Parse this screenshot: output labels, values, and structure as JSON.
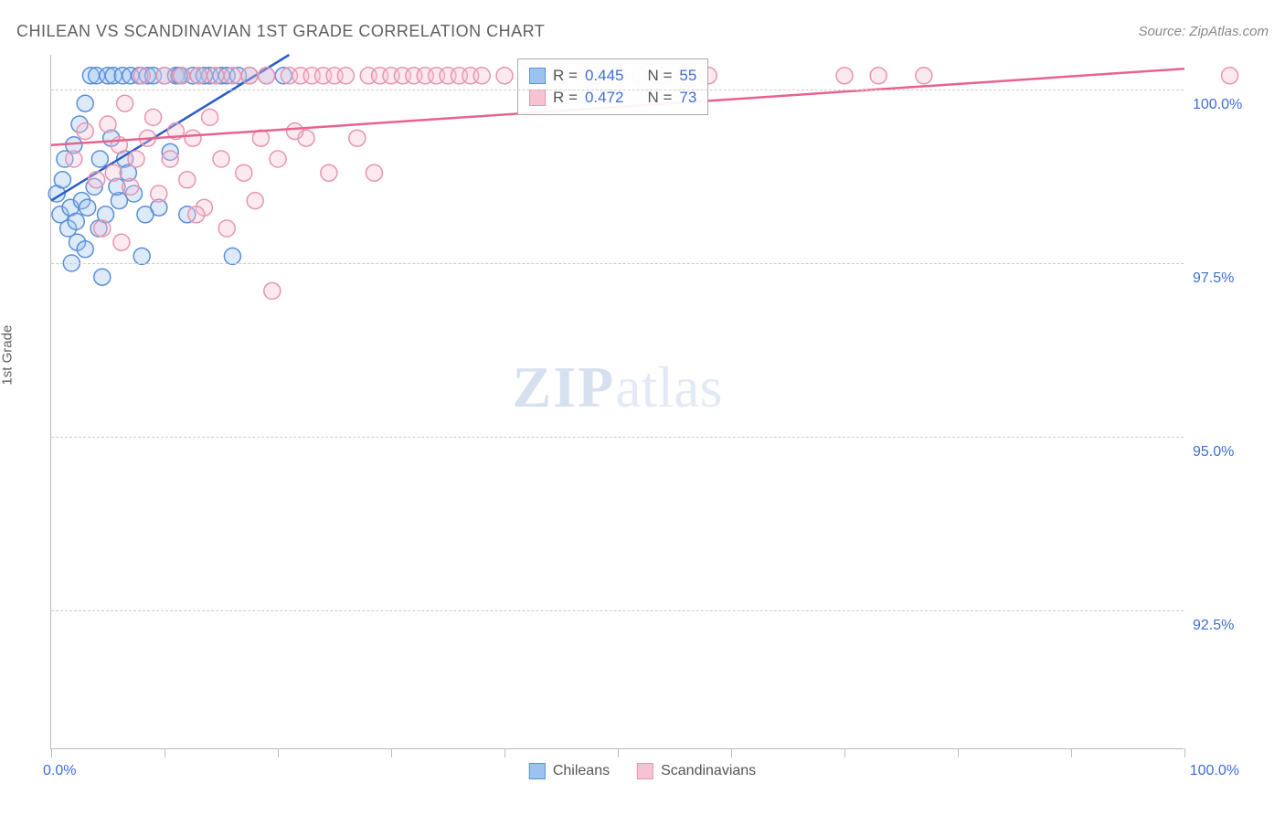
{
  "title": "CHILEAN VS SCANDINAVIAN 1ST GRADE CORRELATION CHART",
  "source": "Source: ZipAtlas.com",
  "y_axis_label": "1st Grade",
  "watermark": {
    "zip": "ZIP",
    "atlas": "atlas"
  },
  "chart": {
    "type": "scatter",
    "xlim": [
      0,
      100
    ],
    "ylim": [
      90.5,
      100.5
    ],
    "y_gridlines": [
      92.5,
      95.0,
      97.5,
      100.0
    ],
    "y_tick_labels": [
      "92.5%",
      "95.0%",
      "97.5%",
      "100.0%"
    ],
    "x_ticks": [
      0,
      10,
      20,
      30,
      40,
      50,
      60,
      70,
      80,
      90,
      100
    ],
    "x_min_label": "0.0%",
    "x_max_label": "100.0%",
    "background": "#ffffff",
    "grid_color": "#cccccc",
    "axis_color": "#bbbbbb",
    "marker_radius": 9,
    "marker_fill_opacity": 0.35,
    "marker_stroke_width": 1.5,
    "series": [
      {
        "name": "Chileans",
        "color_fill": "#9cc3f0",
        "color_stroke": "#5b8fd6",
        "trend_line_color": "#2a5dc9",
        "trend": {
          "x1": 0,
          "y1": 98.4,
          "x2": 21,
          "y2": 100.5
        },
        "points": [
          [
            0.5,
            98.5
          ],
          [
            0.8,
            98.2
          ],
          [
            1.0,
            98.7
          ],
          [
            1.2,
            99.0
          ],
          [
            1.5,
            98.0
          ],
          [
            1.7,
            98.3
          ],
          [
            2.0,
            99.2
          ],
          [
            2.2,
            98.1
          ],
          [
            2.5,
            99.5
          ],
          [
            2.7,
            98.4
          ],
          [
            3.0,
            99.8
          ],
          [
            3.2,
            98.3
          ],
          [
            3.5,
            100.2
          ],
          [
            3.8,
            98.6
          ],
          [
            4.0,
            100.2
          ],
          [
            4.3,
            99.0
          ],
          [
            4.5,
            97.3
          ],
          [
            4.8,
            98.2
          ],
          [
            5.0,
            100.2
          ],
          [
            5.3,
            99.3
          ],
          [
            5.5,
            100.2
          ],
          [
            6.0,
            98.4
          ],
          [
            6.3,
            100.2
          ],
          [
            6.5,
            99.0
          ],
          [
            7.0,
            100.2
          ],
          [
            7.3,
            98.5
          ],
          [
            7.8,
            100.2
          ],
          [
            8.0,
            97.6
          ],
          [
            8.5,
            100.2
          ],
          [
            9.0,
            100.2
          ],
          [
            9.5,
            98.3
          ],
          [
            10.0,
            100.2
          ],
          [
            10.5,
            99.1
          ],
          [
            11.0,
            100.2
          ],
          [
            11.5,
            100.2
          ],
          [
            12.0,
            98.2
          ],
          [
            12.5,
            100.2
          ],
          [
            13.0,
            100.2
          ],
          [
            14.0,
            100.2
          ],
          [
            15.0,
            100.2
          ],
          [
            15.5,
            100.2
          ],
          [
            16.0,
            97.6
          ],
          [
            16.5,
            100.2
          ],
          [
            17.5,
            100.2
          ],
          [
            19.0,
            100.2
          ],
          [
            20.5,
            100.2
          ],
          [
            1.8,
            97.5
          ],
          [
            2.3,
            97.8
          ],
          [
            3.0,
            97.7
          ],
          [
            4.2,
            98.0
          ],
          [
            5.8,
            98.6
          ],
          [
            6.8,
            98.8
          ],
          [
            8.3,
            98.2
          ],
          [
            11.3,
            100.2
          ],
          [
            13.5,
            100.2
          ]
        ]
      },
      {
        "name": "Scandinavians",
        "color_fill": "#f6c3d3",
        "color_stroke": "#e895b0",
        "trend_line_color": "#e8628f",
        "trend": {
          "x1": 0,
          "y1": 99.2,
          "x2": 100,
          "y2": 100.3
        },
        "points": [
          [
            2.0,
            99.0
          ],
          [
            3.0,
            99.4
          ],
          [
            4.0,
            98.7
          ],
          [
            5.0,
            99.5
          ],
          [
            5.5,
            98.8
          ],
          [
            6.0,
            99.2
          ],
          [
            6.5,
            99.8
          ],
          [
            7.0,
            98.6
          ],
          [
            7.5,
            99.0
          ],
          [
            8.0,
            100.2
          ],
          [
            8.5,
            99.3
          ],
          [
            9.0,
            99.6
          ],
          [
            9.5,
            98.5
          ],
          [
            10.0,
            100.2
          ],
          [
            10.5,
            99.0
          ],
          [
            11.0,
            99.4
          ],
          [
            11.5,
            100.2
          ],
          [
            12.0,
            98.7
          ],
          [
            12.5,
            99.3
          ],
          [
            13.0,
            100.2
          ],
          [
            13.5,
            98.3
          ],
          [
            14.0,
            99.6
          ],
          [
            14.5,
            100.2
          ],
          [
            15.0,
            99.0
          ],
          [
            16.0,
            100.2
          ],
          [
            17.0,
            98.8
          ],
          [
            17.5,
            100.2
          ],
          [
            18.0,
            98.4
          ],
          [
            18.5,
            99.3
          ],
          [
            19.0,
            100.2
          ],
          [
            19.5,
            97.1
          ],
          [
            20.0,
            99.0
          ],
          [
            21.0,
            100.2
          ],
          [
            22.0,
            100.2
          ],
          [
            22.5,
            99.3
          ],
          [
            23.0,
            100.2
          ],
          [
            24.0,
            100.2
          ],
          [
            24.5,
            98.8
          ],
          [
            25.0,
            100.2
          ],
          [
            26.0,
            100.2
          ],
          [
            27.0,
            99.3
          ],
          [
            28.0,
            100.2
          ],
          [
            28.5,
            98.8
          ],
          [
            29.0,
            100.2
          ],
          [
            30.0,
            100.2
          ],
          [
            31.0,
            100.2
          ],
          [
            32.0,
            100.2
          ],
          [
            33.0,
            100.2
          ],
          [
            34.0,
            100.2
          ],
          [
            35.0,
            100.2
          ],
          [
            36.0,
            100.2
          ],
          [
            37.0,
            100.2
          ],
          [
            38.0,
            100.2
          ],
          [
            40.0,
            100.2
          ],
          [
            42.0,
            100.2
          ],
          [
            44.0,
            100.2
          ],
          [
            45.0,
            100.2
          ],
          [
            47.0,
            100.2
          ],
          [
            48.0,
            100.2
          ],
          [
            50.0,
            100.2
          ],
          [
            52.0,
            100.2
          ],
          [
            54.0,
            100.2
          ],
          [
            56.0,
            100.2
          ],
          [
            58.0,
            100.2
          ],
          [
            70.0,
            100.2
          ],
          [
            73.0,
            100.2
          ],
          [
            77.0,
            100.2
          ],
          [
            104.0,
            100.2
          ],
          [
            4.5,
            98.0
          ],
          [
            6.2,
            97.8
          ],
          [
            12.8,
            98.2
          ],
          [
            15.5,
            98.0
          ],
          [
            21.5,
            99.4
          ]
        ]
      }
    ]
  },
  "stats_box": {
    "rows": [
      {
        "swatch_fill": "#9cc3f0",
        "swatch_stroke": "#5b8fd6",
        "r_label": "R =",
        "r_val": "0.445",
        "n_label": "N =",
        "n_val": "55"
      },
      {
        "swatch_fill": "#f6c3d3",
        "swatch_stroke": "#e895b0",
        "r_label": "R =",
        "r_val": "0.472",
        "n_label": "N =",
        "n_val": "73"
      }
    ]
  },
  "legend": [
    {
      "swatch_fill": "#9cc3f0",
      "swatch_stroke": "#5b8fd6",
      "label": "Chileans"
    },
    {
      "swatch_fill": "#f6c3d3",
      "swatch_stroke": "#e895b0",
      "label": "Scandinavians"
    }
  ]
}
